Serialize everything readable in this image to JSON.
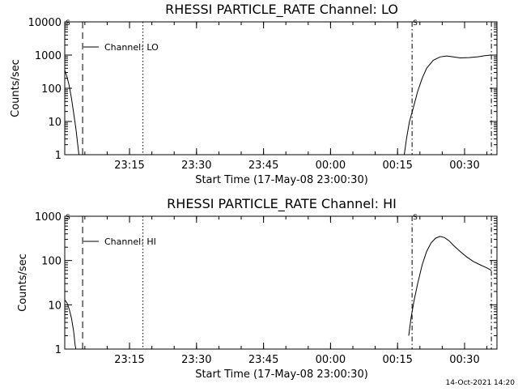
{
  "timestamp": "14-Oct-2021 14:20",
  "chart_data": [
    {
      "type": "line",
      "title": "RHESSI PARTICLE_RATE Channel: LO",
      "xlabel": "Start Time (17-May-08 23:00:30)",
      "ylabel": "Counts/sec",
      "y_scale": "log",
      "xlim": [
        "23:00:30",
        "00:37:15"
      ],
      "ylim": [
        1,
        10000
      ],
      "x_ticks": [
        "23:15",
        "23:30",
        "23:45",
        "00:00",
        "00:15",
        "00:30"
      ],
      "y_ticks": [
        "1",
        "10",
        "100",
        "1000",
        "10000"
      ],
      "legend": {
        "entries": [
          "Channel: LO"
        ],
        "placement": "top-left"
      },
      "markers": [
        "S"
      ],
      "vlines": [
        {
          "x": "23:04:30",
          "style": "dashed"
        },
        {
          "x": "23:18:00",
          "style": "dotted"
        },
        {
          "x": "00:18:15",
          "style": "dash-dot"
        },
        {
          "x": "00:36:00",
          "style": "dash-dot"
        }
      ],
      "series": [
        {
          "name": "Channel: LO",
          "segments": [
            [
              [
                "23:00:30",
                350
              ],
              [
                "23:01:00",
                220
              ],
              [
                "23:01:30",
                120
              ],
              [
                "23:02:00",
                50
              ],
              [
                "23:02:30",
                18
              ],
              [
                "23:03:00",
                6
              ],
              [
                "23:03:20",
                2.5
              ],
              [
                "23:03:40",
                1
              ]
            ],
            [
              [
                "00:16:30",
                1
              ],
              [
                "00:17:00",
                3
              ],
              [
                "00:17:40",
                10
              ],
              [
                "00:18:30",
                25
              ],
              [
                "00:19:30",
                80
              ],
              [
                "00:20:30",
                200
              ],
              [
                "00:21:30",
                400
              ],
              [
                "00:23:00",
                700
              ],
              [
                "00:24:30",
                880
              ],
              [
                "00:26:00",
                940
              ],
              [
                "00:27:30",
                880
              ],
              [
                "00:29:00",
                820
              ],
              [
                "00:31:00",
                840
              ],
              [
                "00:33:00",
                890
              ],
              [
                "00:34:30",
                960
              ],
              [
                "00:36:00",
                1000
              ]
            ]
          ]
        }
      ]
    },
    {
      "type": "line",
      "title": "RHESSI PARTICLE_RATE Channel: HI",
      "xlabel": "Start Time (17-May-08 23:00:30)",
      "ylabel": "Counts/sec",
      "y_scale": "log",
      "xlim": [
        "23:00:30",
        "00:37:15"
      ],
      "ylim": [
        1,
        1000
      ],
      "x_ticks": [
        "23:15",
        "23:30",
        "23:45",
        "00:00",
        "00:15",
        "00:30"
      ],
      "y_ticks": [
        "1",
        "10",
        "100",
        "1000"
      ],
      "legend": {
        "entries": [
          "Channel: HI"
        ],
        "placement": "top-left"
      },
      "markers": [
        "S"
      ],
      "vlines": [
        {
          "x": "23:04:30",
          "style": "dashed"
        },
        {
          "x": "23:18:00",
          "style": "dotted"
        },
        {
          "x": "00:18:15",
          "style": "dash-dot"
        },
        {
          "x": "00:36:00",
          "style": "dash-dot"
        }
      ],
      "series": [
        {
          "name": "Channel: HI",
          "segments": [
            [
              [
                "23:00:30",
                13
              ],
              [
                "23:01:00",
                11
              ],
              [
                "23:01:30",
                8
              ],
              [
                "23:02:00",
                5
              ],
              [
                "23:02:30",
                2.5
              ],
              [
                "23:02:50",
                1.2
              ],
              [
                "23:03:00",
                1
              ]
            ],
            [
              [
                "00:17:30",
                2
              ],
              [
                "00:18:00",
                5
              ],
              [
                "00:18:40",
                12
              ],
              [
                "00:19:30",
                30
              ],
              [
                "00:20:30",
                80
              ],
              [
                "00:21:30",
                160
              ],
              [
                "00:22:30",
                250
              ],
              [
                "00:23:30",
                320
              ],
              [
                "00:24:30",
                350
              ],
              [
                "00:25:30",
                330
              ],
              [
                "00:26:30",
                280
              ],
              [
                "00:27:30",
                220
              ],
              [
                "00:29:00",
                160
              ],
              [
                "00:30:30",
                120
              ],
              [
                "00:32:00",
                95
              ],
              [
                "00:33:30",
                80
              ],
              [
                "00:35:00",
                68
              ],
              [
                "00:36:00",
                60
              ]
            ]
          ]
        }
      ]
    }
  ]
}
